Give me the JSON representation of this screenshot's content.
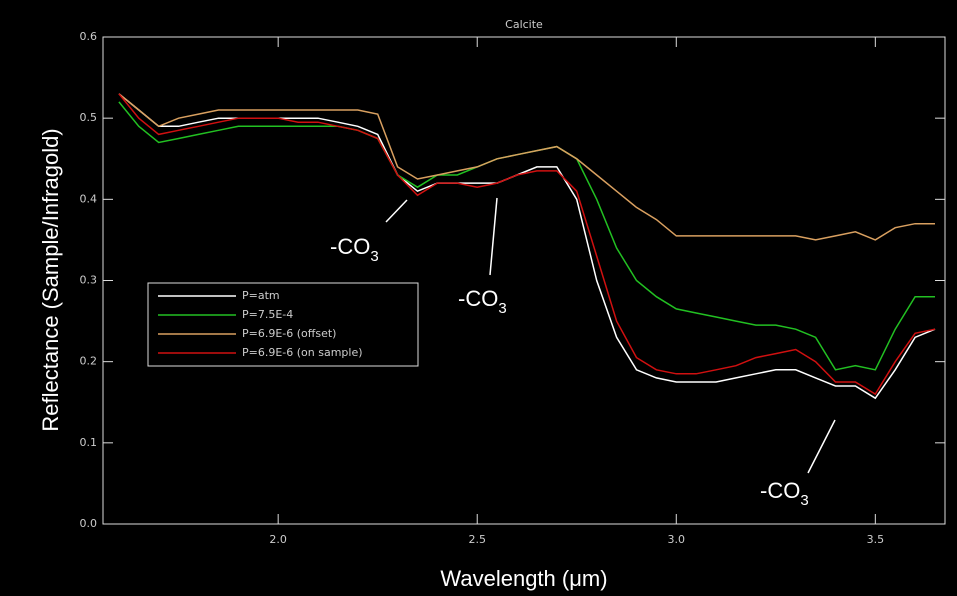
{
  "chart_data": {
    "type": "line",
    "title": "Calcite",
    "xlabel": "Wavelength (μm)",
    "ylabel": "Reflectance (Sample/Infragold)",
    "xlim": [
      1.56,
      3.675
    ],
    "ylim": [
      0,
      0.6
    ],
    "xticks": [
      {
        "value": 2,
        "label": "2.0"
      },
      2.5,
      {
        "value": 3,
        "label": "3.0"
      },
      3.5
    ],
    "yticks": [
      {
        "value": 0,
        "label": "0.0"
      },
      0.1,
      0.2,
      0.3,
      0.4,
      0.5,
      0.6
    ],
    "x": [
      1.6,
      1.65,
      1.7,
      1.75,
      1.8,
      1.85,
      1.9,
      1.95,
      2.0,
      2.05,
      2.1,
      2.15,
      2.2,
      2.25,
      2.3,
      2.35,
      2.4,
      2.45,
      2.5,
      2.55,
      2.6,
      2.65,
      2.7,
      2.75,
      2.8,
      2.85,
      2.9,
      2.95,
      3.0,
      3.05,
      3.1,
      3.15,
      3.2,
      3.25,
      3.3,
      3.35,
      3.4,
      3.45,
      3.5,
      3.55,
      3.6,
      3.65
    ],
    "series": [
      {
        "name": "P=atm",
        "color": "#ffffff",
        "values": [
          0.53,
          0.51,
          0.49,
          0.49,
          0.495,
          0.5,
          0.5,
          0.5,
          0.5,
          0.5,
          0.5,
          0.495,
          0.49,
          0.48,
          0.43,
          0.41,
          0.42,
          0.42,
          0.42,
          0.42,
          0.43,
          0.44,
          0.44,
          0.4,
          0.3,
          0.23,
          0.19,
          0.18,
          0.175,
          0.175,
          0.175,
          0.18,
          0.185,
          0.19,
          0.19,
          0.18,
          0.17,
          0.17,
          0.155,
          0.19,
          0.23,
          0.24
        ]
      },
      {
        "name": "P=7.5E-4",
        "color": "#22c022",
        "values": [
          0.52,
          0.49,
          0.47,
          0.475,
          0.48,
          0.485,
          0.49,
          0.49,
          0.49,
          0.49,
          0.49,
          0.49,
          0.485,
          0.475,
          0.43,
          0.415,
          0.43,
          0.43,
          0.44,
          0.45,
          0.455,
          0.46,
          0.465,
          0.45,
          0.4,
          0.34,
          0.3,
          0.28,
          0.265,
          0.26,
          0.255,
          0.25,
          0.245,
          0.245,
          0.24,
          0.23,
          0.19,
          0.195,
          0.19,
          0.24,
          0.28,
          0.28
        ]
      },
      {
        "name": "P=6.9E-6 (offset)",
        "color": "#d9a060",
        "values": [
          0.53,
          0.51,
          0.49,
          0.5,
          0.505,
          0.51,
          0.51,
          0.51,
          0.51,
          0.51,
          0.51,
          0.51,
          0.51,
          0.505,
          0.44,
          0.425,
          0.43,
          0.435,
          0.44,
          0.45,
          0.455,
          0.46,
          0.465,
          0.45,
          0.43,
          0.41,
          0.39,
          0.375,
          0.355,
          0.355,
          0.355,
          0.355,
          0.355,
          0.355,
          0.355,
          0.35,
          0.355,
          0.36,
          0.35,
          0.365,
          0.37,
          0.37
        ]
      },
      {
        "name": "P=6.9E-6 (on sample)",
        "color": "#d01010",
        "values": [
          0.53,
          0.5,
          0.48,
          0.485,
          0.49,
          0.495,
          0.5,
          0.5,
          0.5,
          0.495,
          0.495,
          0.49,
          0.485,
          0.475,
          0.43,
          0.405,
          0.42,
          0.42,
          0.415,
          0.42,
          0.43,
          0.435,
          0.435,
          0.41,
          0.33,
          0.25,
          0.205,
          0.19,
          0.185,
          0.185,
          0.19,
          0.195,
          0.205,
          0.21,
          0.215,
          0.2,
          0.175,
          0.175,
          0.16,
          0.2,
          0.235,
          0.24
        ]
      }
    ],
    "annotations": [
      {
        "text": "-CO",
        "subscript": "3"
      },
      {
        "text": "-CO",
        "subscript": "3"
      },
      {
        "text": "-CO",
        "subscript": "3"
      }
    ]
  }
}
